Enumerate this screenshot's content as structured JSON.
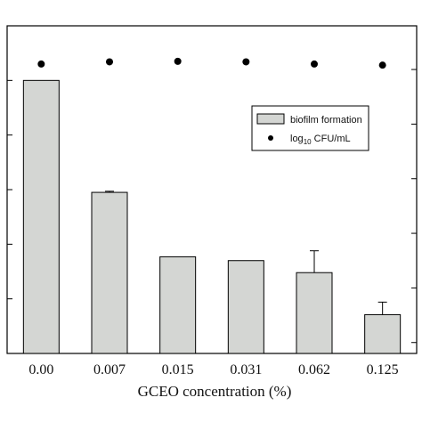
{
  "chart_data": {
    "type": "bar",
    "xlabel": "GCEO concentration (%)",
    "categories": [
      "0.00",
      "0.007",
      "0.015",
      "0.031",
      "0.062",
      "0.125"
    ],
    "series": [
      {
        "name": "biofilm formation",
        "kind": "bar",
        "values": [
          5.0,
          2.95,
          1.77,
          1.7,
          1.48,
          0.71
        ],
        "errors": [
          0.0,
          0.02,
          0.0,
          0.0,
          0.4,
          0.23
        ]
      },
      {
        "name": "log10 CFU/mL",
        "kind": "scatter",
        "values": [
          5.3,
          5.34,
          5.35,
          5.34,
          5.3,
          5.28
        ]
      }
    ],
    "ylim": [
      0,
      6
    ],
    "legend_position": "upper-right",
    "legend": {
      "bar_label": "biofilm formation",
      "dot_label_prefix": "log",
      "dot_label_sub": "10",
      "dot_label_suffix": " CFU/mL"
    },
    "colors": {
      "bar": "#d4d6d3",
      "edge": "#000000",
      "dot": "#000000"
    }
  }
}
